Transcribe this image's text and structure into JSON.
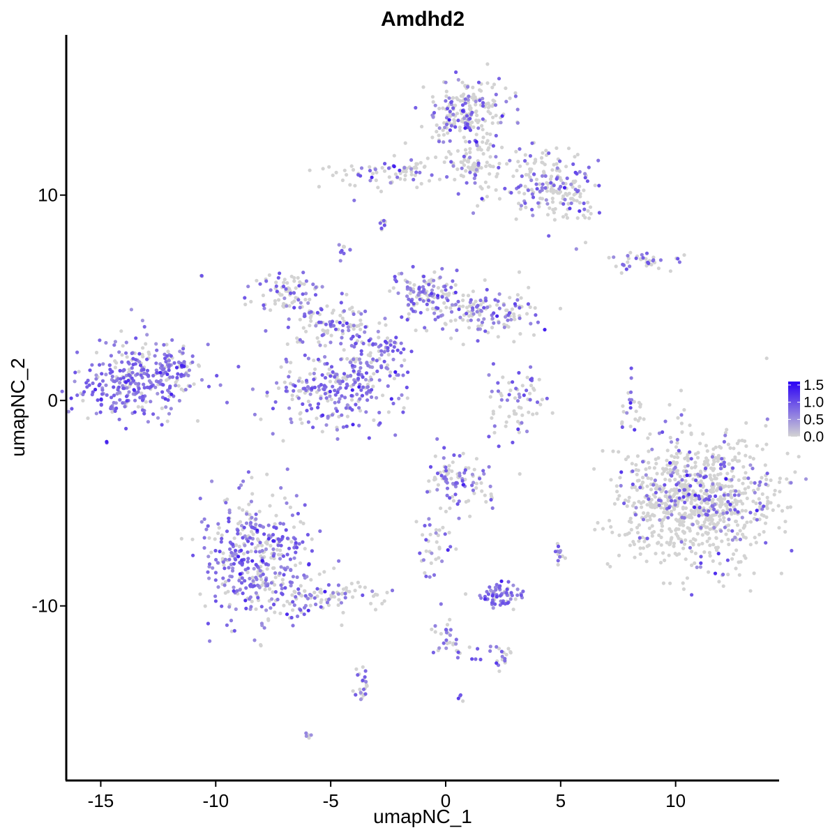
{
  "chart_data": {
    "type": "scatter",
    "title": "Amdhd2",
    "xlabel": "umapNC_1",
    "ylabel": "umapNC_2",
    "xlim": [
      -16.5,
      14.5
    ],
    "ylim": [
      -18.5,
      17.8
    ],
    "x_ticks": [
      -15,
      -10,
      -5,
      0,
      5,
      10
    ],
    "x_tick_labels": [
      "-15",
      "-10",
      "-5",
      "0",
      "5",
      "10"
    ],
    "y_ticks": [
      -10,
      0,
      10
    ],
    "y_tick_labels": [
      "-10",
      "0",
      "10"
    ],
    "grid": false,
    "legend": {
      "placement": "right",
      "scale": "expression",
      "ticks": [
        0.0,
        0.5,
        1.0,
        1.5
      ],
      "tick_labels": [
        "0.0",
        "0.5",
        "1.0",
        "1.5"
      ],
      "low_color": "#d3d3d3",
      "high_color": "#2a00f5",
      "max_value": 1.6
    },
    "clusters": [
      {
        "center": [
          -13.4,
          1.0
        ],
        "spread": [
          1.3,
          0.9
        ],
        "n": 320,
        "expr_prob": 0.75
      },
      {
        "center": [
          -11.7,
          1.6
        ],
        "spread": [
          0.5,
          0.5
        ],
        "n": 40,
        "expr_prob": 0.6
      },
      {
        "center": [
          -6.8,
          5.3
        ],
        "spread": [
          0.9,
          0.5
        ],
        "n": 80,
        "expr_prob": 0.45
      },
      {
        "center": [
          -5.0,
          3.8
        ],
        "spread": [
          1.0,
          0.5
        ],
        "n": 90,
        "expr_prob": 0.45
      },
      {
        "center": [
          -1.0,
          5.2
        ],
        "spread": [
          0.6,
          0.6
        ],
        "n": 110,
        "expr_prob": 0.6
      },
      {
        "center": [
          1.5,
          4.3
        ],
        "spread": [
          1.4,
          0.6
        ],
        "n": 150,
        "expr_prob": 0.45
      },
      {
        "center": [
          -4.8,
          0.5
        ],
        "spread": [
          1.4,
          0.9
        ],
        "n": 260,
        "expr_prob": 0.72
      },
      {
        "center": [
          -3.5,
          2.3
        ],
        "spread": [
          0.6,
          0.8
        ],
        "n": 60,
        "expr_prob": 0.5
      },
      {
        "center": [
          -2.4,
          2.6
        ],
        "spread": [
          0.35,
          0.3
        ],
        "n": 30,
        "expr_prob": 0.8
      },
      {
        "center": [
          0.9,
          14.0
        ],
        "spread": [
          0.9,
          0.8
        ],
        "n": 220,
        "expr_prob": 0.35
      },
      {
        "center": [
          1.3,
          11.5
        ],
        "spread": [
          0.5,
          0.8
        ],
        "n": 70,
        "expr_prob": 0.3
      },
      {
        "center": [
          -2.3,
          11.1
        ],
        "spread": [
          1.5,
          0.4
        ],
        "n": 90,
        "expr_prob": 0.3
      },
      {
        "center": [
          4.3,
          10.8
        ],
        "spread": [
          1.0,
          0.8
        ],
        "n": 140,
        "expr_prob": 0.35
      },
      {
        "center": [
          5.3,
          9.5
        ],
        "spread": [
          0.6,
          0.7
        ],
        "n": 60,
        "expr_prob": 0.3
      },
      {
        "center": [
          8.7,
          6.8
        ],
        "spread": [
          0.9,
          0.25
        ],
        "n": 40,
        "expr_prob": 0.35
      },
      {
        "center": [
          3.1,
          -0.1
        ],
        "spread": [
          0.7,
          0.9
        ],
        "n": 70,
        "expr_prob": 0.45
      },
      {
        "center": [
          10.9,
          -4.8
        ],
        "spread": [
          1.6,
          1.6
        ],
        "n": 900,
        "expr_prob": 0.2
      },
      {
        "center": [
          8.1,
          -0.4
        ],
        "spread": [
          0.2,
          0.8
        ],
        "n": 25,
        "expr_prob": 0.4
      },
      {
        "center": [
          0.5,
          -4.0
        ],
        "spread": [
          0.7,
          0.7
        ],
        "n": 100,
        "expr_prob": 0.45
      },
      {
        "center": [
          -0.6,
          -6.9
        ],
        "spread": [
          0.4,
          0.8
        ],
        "n": 35,
        "expr_prob": 0.4
      },
      {
        "center": [
          -8.2,
          -7.7
        ],
        "spread": [
          1.3,
          1.5
        ],
        "n": 420,
        "expr_prob": 0.65
      },
      {
        "center": [
          -5.3,
          -9.6
        ],
        "spread": [
          1.2,
          0.4
        ],
        "n": 90,
        "expr_prob": 0.3
      },
      {
        "center": [
          -3.7,
          -13.9
        ],
        "spread": [
          0.15,
          0.5
        ],
        "n": 25,
        "expr_prob": 0.4
      },
      {
        "center": [
          2.4,
          -9.5
        ],
        "spread": [
          0.5,
          0.3
        ],
        "n": 70,
        "expr_prob": 0.75
      },
      {
        "center": [
          5.0,
          -7.5
        ],
        "spread": [
          0.15,
          0.25
        ],
        "n": 12,
        "expr_prob": 0.6
      },
      {
        "center": [
          0.1,
          -11.5
        ],
        "spread": [
          0.3,
          0.5
        ],
        "n": 25,
        "expr_prob": 0.5
      },
      {
        "center": [
          1.5,
          -12.2
        ],
        "spread": [
          0.9,
          0.2
        ],
        "n": 20,
        "expr_prob": 0.4
      },
      {
        "center": [
          2.5,
          -12.7
        ],
        "spread": [
          0.2,
          0.2
        ],
        "n": 10,
        "expr_prob": 0.6
      },
      {
        "center": [
          -2.7,
          8.6
        ],
        "spread": [
          0.15,
          0.15
        ],
        "n": 8,
        "expr_prob": 0.5
      },
      {
        "center": [
          -4.4,
          7.4
        ],
        "spread": [
          0.15,
          0.25
        ],
        "n": 10,
        "expr_prob": 0.6
      },
      {
        "center": [
          -6.0,
          -16.3
        ],
        "spread": [
          0.1,
          0.1
        ],
        "n": 5,
        "expr_prob": 0.5
      },
      {
        "center": [
          0.6,
          -14.4
        ],
        "spread": [
          0.1,
          0.1
        ],
        "n": 4,
        "expr_prob": 0.6
      },
      {
        "center": [
          -10.6,
          6.1
        ],
        "spread": [
          0.05,
          0.05
        ],
        "n": 3,
        "expr_prob": 0.6
      }
    ]
  }
}
